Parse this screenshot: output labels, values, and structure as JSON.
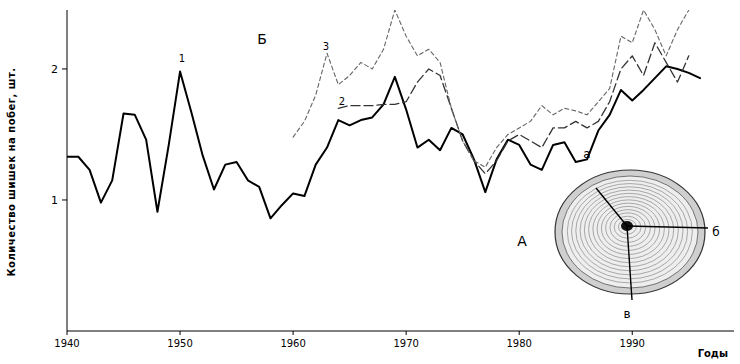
{
  "chart_data": {
    "type": "line",
    "x_label": "Годы",
    "y_label": "Количество шишек на побег, шт.",
    "annotations": [
      "Б",
      "А",
      "а",
      "б",
      "в"
    ],
    "x": [
      1940,
      1941,
      1942,
      1943,
      1944,
      1945,
      1946,
      1947,
      1948,
      1949,
      1950,
      1951,
      1952,
      1953,
      1954,
      1955,
      1956,
      1957,
      1958,
      1959,
      1960,
      1961,
      1962,
      1963,
      1964,
      1965,
      1966,
      1967,
      1968,
      1969,
      1970,
      1971,
      1972,
      1973,
      1974,
      1975,
      1976,
      1977,
      1978,
      1979,
      1980,
      1981,
      1982,
      1983,
      1984,
      1985,
      1986,
      1987,
      1988,
      1989,
      1990,
      1991,
      1992,
      1993,
      1994,
      1995,
      1996
    ],
    "xlim": [
      1940,
      1999
    ],
    "xticks": [
      1940,
      1950,
      1960,
      1970,
      1980,
      1990
    ],
    "ylim": [
      0,
      2.45
    ],
    "yticks": [
      1,
      2
    ],
    "grid": false,
    "series": [
      {
        "name": "1",
        "color": "#000000",
        "line_style": "solid",
        "values": [
          1.33,
          1.33,
          1.23,
          0.98,
          1.15,
          1.66,
          1.65,
          1.46,
          0.91,
          1.42,
          1.98,
          1.67,
          1.34,
          1.08,
          1.27,
          1.29,
          1.15,
          1.1,
          0.86,
          0.96,
          1.05,
          1.03,
          1.27,
          1.4,
          1.61,
          1.57,
          1.61,
          1.63,
          1.73,
          1.94,
          1.69,
          1.4,
          1.46,
          1.38,
          1.55,
          1.5,
          1.31,
          1.06,
          1.31,
          1.46,
          1.42,
          1.27,
          1.23,
          1.42,
          1.44,
          1.29,
          1.31,
          1.53,
          1.65,
          1.84,
          1.76,
          1.84,
          1.93,
          2.02,
          2.0,
          1.97,
          1.93
        ]
      },
      {
        "name": "2",
        "color": "#333333",
        "line_style": "long_dashed",
        "values": [
          null,
          null,
          null,
          null,
          null,
          null,
          null,
          null,
          null,
          null,
          null,
          null,
          null,
          null,
          null,
          null,
          null,
          null,
          null,
          null,
          null,
          null,
          null,
          null,
          1.7,
          1.72,
          1.72,
          1.72,
          1.73,
          1.73,
          1.75,
          1.9,
          2.0,
          1.95,
          1.7,
          1.45,
          1.3,
          1.2,
          1.3,
          1.45,
          1.5,
          1.45,
          1.4,
          1.55,
          1.55,
          1.6,
          1.55,
          1.6,
          1.75,
          2.0,
          2.1,
          1.95,
          2.2,
          2.05,
          1.9,
          2.1,
          null
        ]
      },
      {
        "name": "3",
        "color": "#666666",
        "line_style": "dashed",
        "values": [
          null,
          null,
          null,
          null,
          null,
          null,
          null,
          null,
          null,
          null,
          null,
          null,
          null,
          null,
          null,
          null,
          null,
          null,
          null,
          null,
          1.48,
          1.6,
          1.8,
          2.12,
          1.88,
          1.95,
          2.05,
          2.0,
          2.15,
          2.45,
          2.25,
          2.1,
          2.15,
          2.05,
          1.7,
          1.45,
          1.3,
          1.25,
          1.4,
          1.5,
          1.55,
          1.6,
          1.72,
          1.65,
          1.7,
          1.68,
          1.65,
          1.75,
          1.85,
          2.25,
          2.2,
          2.45,
          2.3,
          2.1,
          2.3,
          2.45,
          null
        ]
      }
    ]
  }
}
